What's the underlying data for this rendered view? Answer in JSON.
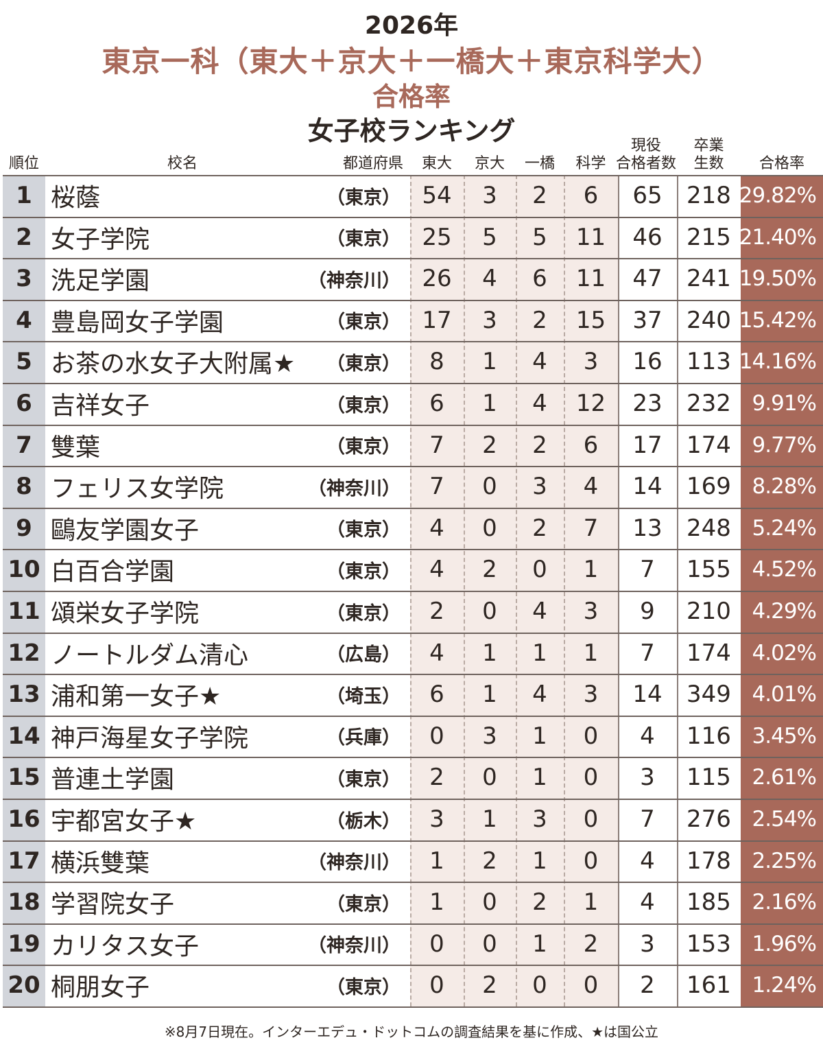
{
  "title": {
    "year": "2026年",
    "main": "東京一科（東大＋京大＋一橋大＋東京科学大）",
    "sub": "合格率",
    "ranking": "女子校ランキング"
  },
  "headers": {
    "rank": "順位",
    "name": "校名",
    "pref": "都道府県",
    "tokyo": "東大",
    "kyoto": "京大",
    "hitotsubashi": "一橋",
    "kagaku": "科学",
    "gokaku": "現役\n合格者数",
    "sotsugyo": "卒業\n生数",
    "rate": "合格率"
  },
  "colors": {
    "title_accent": "#a8695a",
    "rate_column": "#a8695a",
    "number_band": "#f5ebe7",
    "rank_band": "#d2d5db"
  },
  "chart_data": {
    "type": "table",
    "columns": [
      "順位",
      "校名",
      "都道府県",
      "東大",
      "京大",
      "一橋",
      "科学",
      "現役合格者数",
      "卒業生数",
      "合格率"
    ],
    "rows": [
      {
        "rank": "1",
        "name": "桜蔭",
        "pref": "（東京）",
        "tokyo": "54",
        "kyoto": "3",
        "hitotsubashi": "2",
        "kagaku": "6",
        "gokaku": "65",
        "sotsugyo": "218",
        "rate": "29.82%"
      },
      {
        "rank": "2",
        "name": "女子学院",
        "pref": "（東京）",
        "tokyo": "25",
        "kyoto": "5",
        "hitotsubashi": "5",
        "kagaku": "11",
        "gokaku": "46",
        "sotsugyo": "215",
        "rate": "21.40%"
      },
      {
        "rank": "3",
        "name": "洗足学園",
        "pref": "（神奈川）",
        "tokyo": "26",
        "kyoto": "4",
        "hitotsubashi": "6",
        "kagaku": "11",
        "gokaku": "47",
        "sotsugyo": "241",
        "rate": "19.50%"
      },
      {
        "rank": "4",
        "name": "豊島岡女子学園",
        "pref": "（東京）",
        "tokyo": "17",
        "kyoto": "3",
        "hitotsubashi": "2",
        "kagaku": "15",
        "gokaku": "37",
        "sotsugyo": "240",
        "rate": "15.42%"
      },
      {
        "rank": "5",
        "name": "お茶の水女子大附属★",
        "pref": "（東京）",
        "tokyo": "8",
        "kyoto": "1",
        "hitotsubashi": "4",
        "kagaku": "3",
        "gokaku": "16",
        "sotsugyo": "113",
        "rate": "14.16%"
      },
      {
        "rank": "6",
        "name": "吉祥女子",
        "pref": "（東京）",
        "tokyo": "6",
        "kyoto": "1",
        "hitotsubashi": "4",
        "kagaku": "12",
        "gokaku": "23",
        "sotsugyo": "232",
        "rate": "9.91%"
      },
      {
        "rank": "7",
        "name": "雙葉",
        "pref": "（東京）",
        "tokyo": "7",
        "kyoto": "2",
        "hitotsubashi": "2",
        "kagaku": "6",
        "gokaku": "17",
        "sotsugyo": "174",
        "rate": "9.77%"
      },
      {
        "rank": "8",
        "name": "フェリス女学院",
        "pref": "（神奈川）",
        "tokyo": "7",
        "kyoto": "0",
        "hitotsubashi": "3",
        "kagaku": "4",
        "gokaku": "14",
        "sotsugyo": "169",
        "rate": "8.28%"
      },
      {
        "rank": "9",
        "name": "鷗友学園女子",
        "pref": "（東京）",
        "tokyo": "4",
        "kyoto": "0",
        "hitotsubashi": "2",
        "kagaku": "7",
        "gokaku": "13",
        "sotsugyo": "248",
        "rate": "5.24%"
      },
      {
        "rank": "10",
        "name": "白百合学園",
        "pref": "（東京）",
        "tokyo": "4",
        "kyoto": "2",
        "hitotsubashi": "0",
        "kagaku": "1",
        "gokaku": "7",
        "sotsugyo": "155",
        "rate": "4.52%"
      },
      {
        "rank": "11",
        "name": "頌栄女子学院",
        "pref": "（東京）",
        "tokyo": "2",
        "kyoto": "0",
        "hitotsubashi": "4",
        "kagaku": "3",
        "gokaku": "9",
        "sotsugyo": "210",
        "rate": "4.29%"
      },
      {
        "rank": "12",
        "name": "ノートルダム清心",
        "pref": "（広島）",
        "tokyo": "4",
        "kyoto": "1",
        "hitotsubashi": "1",
        "kagaku": "1",
        "gokaku": "7",
        "sotsugyo": "174",
        "rate": "4.02%"
      },
      {
        "rank": "13",
        "name": "浦和第一女子★",
        "pref": "（埼玉）",
        "tokyo": "6",
        "kyoto": "1",
        "hitotsubashi": "4",
        "kagaku": "3",
        "gokaku": "14",
        "sotsugyo": "349",
        "rate": "4.01%"
      },
      {
        "rank": "14",
        "name": "神戸海星女子学院",
        "pref": "（兵庫）",
        "tokyo": "0",
        "kyoto": "3",
        "hitotsubashi": "1",
        "kagaku": "0",
        "gokaku": "4",
        "sotsugyo": "116",
        "rate": "3.45%"
      },
      {
        "rank": "15",
        "name": "普連土学園",
        "pref": "（東京）",
        "tokyo": "2",
        "kyoto": "0",
        "hitotsubashi": "1",
        "kagaku": "0",
        "gokaku": "3",
        "sotsugyo": "115",
        "rate": "2.61%"
      },
      {
        "rank": "16",
        "name": "宇都宮女子★",
        "pref": "（栃木）",
        "tokyo": "3",
        "kyoto": "1",
        "hitotsubashi": "3",
        "kagaku": "0",
        "gokaku": "7",
        "sotsugyo": "276",
        "rate": "2.54%"
      },
      {
        "rank": "17",
        "name": "横浜雙葉",
        "pref": "（神奈川）",
        "tokyo": "1",
        "kyoto": "2",
        "hitotsubashi": "1",
        "kagaku": "0",
        "gokaku": "4",
        "sotsugyo": "178",
        "rate": "2.25%"
      },
      {
        "rank": "18",
        "name": "学習院女子",
        "pref": "（東京）",
        "tokyo": "1",
        "kyoto": "0",
        "hitotsubashi": "2",
        "kagaku": "1",
        "gokaku": "4",
        "sotsugyo": "185",
        "rate": "2.16%"
      },
      {
        "rank": "19",
        "name": "カリタス女子",
        "pref": "（神奈川）",
        "tokyo": "0",
        "kyoto": "0",
        "hitotsubashi": "1",
        "kagaku": "2",
        "gokaku": "3",
        "sotsugyo": "153",
        "rate": "1.96%"
      },
      {
        "rank": "20",
        "name": "桐朋女子",
        "pref": "（東京）",
        "tokyo": "0",
        "kyoto": "2",
        "hitotsubashi": "0",
        "kagaku": "0",
        "gokaku": "2",
        "sotsugyo": "161",
        "rate": "1.24%"
      }
    ]
  },
  "footnote": "※8月7日現在。インターエデュ・ドットコムの調査結果を基に作成、★は国公立"
}
